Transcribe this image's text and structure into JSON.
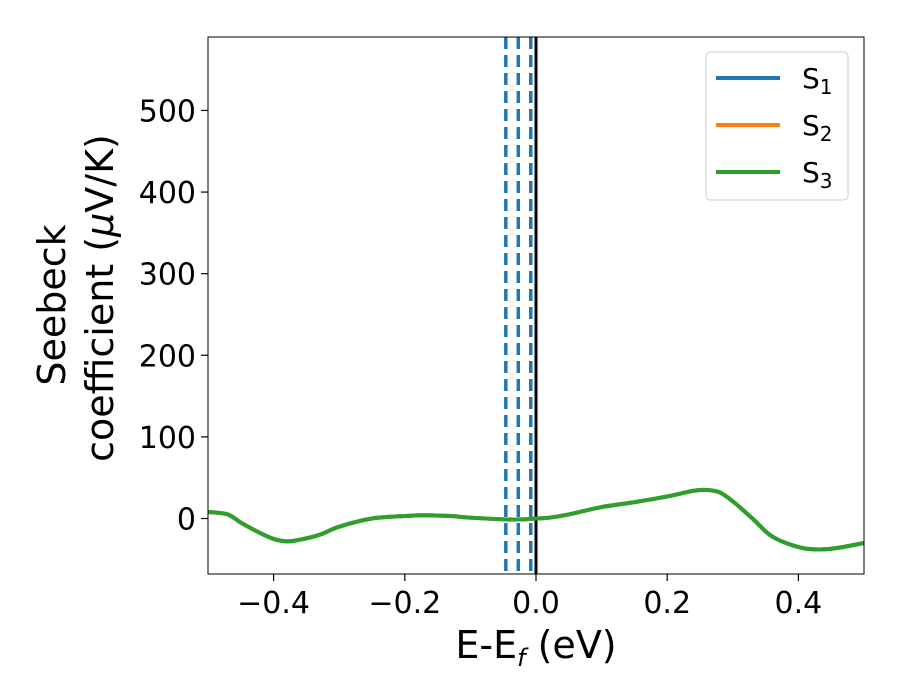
{
  "chart_data": {
    "type": "line",
    "xlabel": "E-E",
    "xlabel_sub": "f",
    "xlabel_unit": " (eV)",
    "ylabel_line1": "Seebeck",
    "ylabel_line2": "coefficient  (",
    "ylabel_mu": "μ",
    "ylabel_unit": "V/K)",
    "xlim": [
      -0.5,
      0.5
    ],
    "ylim": [
      -68,
      590
    ],
    "xticks": [
      -0.4,
      -0.2,
      0.0,
      0.2,
      0.4
    ],
    "xtick_labels": [
      "−0.4",
      "−0.2",
      "0.0",
      "0.2",
      "0.4"
    ],
    "yticks": [
      0,
      100,
      200,
      300,
      400,
      500
    ],
    "ytick_labels": [
      "0",
      "100",
      "200",
      "300",
      "400",
      "500"
    ],
    "grid": false,
    "legend_position": "top-right",
    "series": [
      {
        "name": "S",
        "sub": "1",
        "color": "#1f77b4",
        "x": [
          -0.5,
          -0.47,
          -0.45,
          -0.42,
          -0.4,
          -0.38,
          -0.36,
          -0.33,
          -0.3,
          -0.25,
          -0.2,
          -0.17,
          -0.13,
          -0.1,
          -0.05,
          -0.02,
          0.0,
          0.02,
          0.05,
          0.1,
          0.15,
          0.2,
          0.24,
          0.26,
          0.28,
          0.3,
          0.33,
          0.36,
          0.4,
          0.43,
          0.46,
          0.5
        ],
        "values": [
          8,
          5,
          -5,
          -18,
          -25,
          -28,
          -26,
          -20,
          -10,
          0,
          3,
          4,
          3,
          1,
          -1,
          -1,
          0,
          1,
          5,
          14,
          20,
          27,
          34,
          35,
          32,
          21,
          0,
          -22,
          -35,
          -38,
          -36,
          -30
        ]
      },
      {
        "name": "S",
        "sub": "2",
        "color": "#ff7f0e",
        "x": [
          -0.5,
          -0.47,
          -0.45,
          -0.42,
          -0.4,
          -0.38,
          -0.36,
          -0.33,
          -0.3,
          -0.25,
          -0.2,
          -0.17,
          -0.13,
          -0.1,
          -0.05,
          -0.02,
          0.0,
          0.02,
          0.05,
          0.1,
          0.15,
          0.2,
          0.24,
          0.26,
          0.28,
          0.3,
          0.33,
          0.36,
          0.4,
          0.43,
          0.46,
          0.5
        ],
        "values": [
          8,
          5,
          -5,
          -18,
          -25,
          -28,
          -26,
          -20,
          -10,
          0,
          3,
          4,
          3,
          1,
          -1,
          -1,
          0,
          1,
          5,
          14,
          20,
          27,
          34,
          35,
          32,
          21,
          0,
          -22,
          -35,
          -38,
          -36,
          -30
        ]
      },
      {
        "name": "S",
        "sub": "3",
        "color": "#2ca02c",
        "x": [
          -0.5,
          -0.47,
          -0.45,
          -0.42,
          -0.4,
          -0.38,
          -0.36,
          -0.33,
          -0.3,
          -0.25,
          -0.2,
          -0.17,
          -0.13,
          -0.1,
          -0.05,
          -0.02,
          0.0,
          0.02,
          0.05,
          0.1,
          0.15,
          0.2,
          0.24,
          0.26,
          0.28,
          0.3,
          0.33,
          0.36,
          0.4,
          0.43,
          0.46,
          0.5
        ],
        "values": [
          8,
          5,
          -5,
          -18,
          -25,
          -28,
          -26,
          -20,
          -10,
          0,
          3,
          4,
          3,
          1,
          -1,
          -1,
          0,
          1,
          5,
          14,
          20,
          27,
          34,
          35,
          32,
          21,
          0,
          -22,
          -35,
          -38,
          -36,
          -30
        ]
      }
    ],
    "vlines": [
      {
        "x": -0.046,
        "color": "#1f77b4",
        "style": "dashed"
      },
      {
        "x": -0.027,
        "color": "#1f77b4",
        "style": "dashed"
      },
      {
        "x": -0.008,
        "color": "#1f77b4",
        "style": "dashed"
      },
      {
        "x": 0.0,
        "color": "#000000",
        "style": "solid"
      }
    ]
  }
}
